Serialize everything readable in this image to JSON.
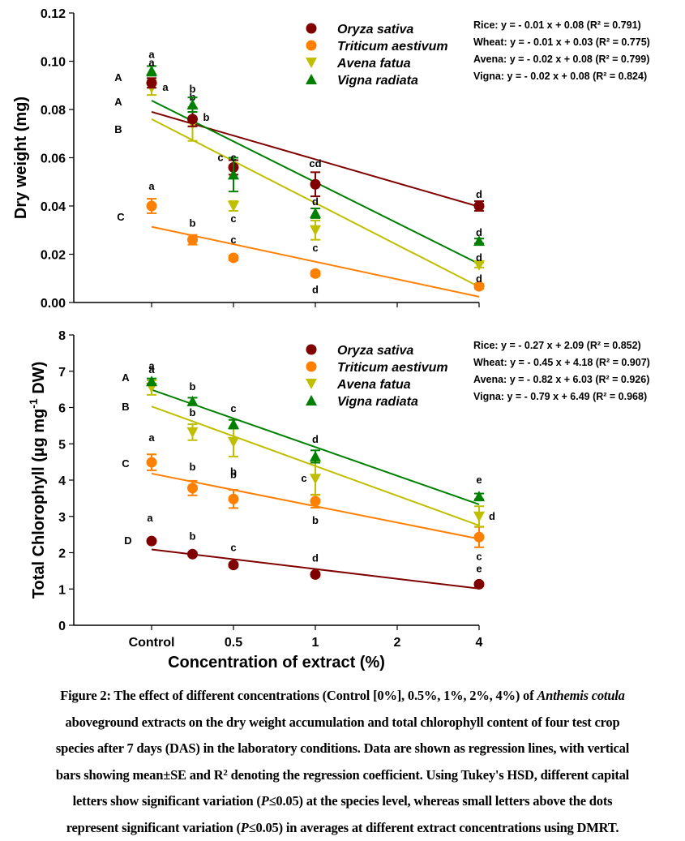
{
  "colors": {
    "rice": "#800000",
    "wheat": "#FF8000",
    "avena": "#BFBF00",
    "vigna": "#008000",
    "axis": "#000000"
  },
  "legend": [
    {
      "key": "rice",
      "label": "Oryza sativa",
      "marker": "circle"
    },
    {
      "key": "wheat",
      "label": "Triticum aestivum",
      "marker": "circle"
    },
    {
      "key": "avena",
      "label": "Avena fatua",
      "marker": "triangle-down"
    },
    {
      "key": "vigna",
      "label": "Vigna radiata",
      "marker": "triangle-up"
    }
  ],
  "chart_data": [
    {
      "type": "scatter",
      "title": "",
      "ylabel": "Dry weight (mg)",
      "xlabel": "",
      "ylim": [
        0,
        0.12
      ],
      "yticks": [
        "0.00",
        "0.02",
        "0.04",
        "0.06",
        "0.08",
        "0.10",
        "0.12"
      ],
      "ytick_values": [
        0,
        0.02,
        0.04,
        0.06,
        0.08,
        0.1,
        0.12
      ],
      "xlim": [
        -1,
        4
      ],
      "xtick_positions": [
        0,
        1,
        2,
        3,
        4
      ],
      "xtick_labels": [],
      "x": [
        0,
        0.5,
        1,
        2,
        4
      ],
      "legend_position": "top-right",
      "species_letters": [
        "A",
        "A",
        "B",
        "C"
      ],
      "series": [
        {
          "key": "rice",
          "name": "Oryza sativa",
          "values": [
            0.091,
            0.076,
            0.056,
            0.049,
            0.04
          ],
          "se": [
            0.002,
            0.003,
            0.003,
            0.005,
            0.002
          ],
          "letters": [
            "a",
            "b",
            "c",
            "cd",
            "d"
          ],
          "fit": {
            "slope": -0.01,
            "intercept": 0.08,
            "r2": 0.791
          },
          "equation": "Rice: y = - 0.01 x + 0.08 (R² = 0.791)"
        },
        {
          "key": "wheat",
          "name": "Triticum aestivum",
          "values": [
            0.04,
            0.026,
            0.0185,
            0.012,
            0.0067
          ],
          "se": [
            0.003,
            0.002,
            0.001,
            0.001,
            0.001
          ],
          "letters": [
            "a",
            "b",
            "c",
            "d",
            "d"
          ],
          "fit": {
            "slope": -0.01,
            "intercept": 0.03,
            "r2": 0.775
          },
          "equation": "Wheat: y = - 0.01 x + 0.03 (R² = 0.775)"
        },
        {
          "key": "avena",
          "name": "Avena fatua",
          "values": [
            0.089,
            0.074,
            0.04,
            0.03,
            0.0155
          ],
          "se": [
            0.003,
            0.007,
            0.002,
            0.004,
            0.001
          ],
          "letters": [
            "a",
            "b",
            "c",
            "c",
            "d"
          ],
          "fit": {
            "slope": -0.02,
            "intercept": 0.08,
            "r2": 0.799
          },
          "equation": "Avena: y = - 0.02 x + 0.08 (R² = 0.799)"
        },
        {
          "key": "vigna",
          "name": "Vigna radiata",
          "values": [
            0.096,
            0.082,
            0.053,
            0.037,
            0.0255
          ],
          "se": [
            0.002,
            0.003,
            0.007,
            0.002,
            0.001
          ],
          "letters": [
            "a",
            "b",
            "c",
            "d",
            "d"
          ],
          "fit": {
            "slope": -0.02,
            "intercept": 0.08,
            "r2": 0.824
          },
          "equation": "Vigna: y = - 0.02 x + 0.08 (R² = 0.824)"
        }
      ],
      "fit_lines": {
        "rice": [
          0.079,
          0.0397
        ],
        "wheat": [
          0.0314,
          0.0024
        ],
        "avena": [
          0.076,
          0.0065
        ],
        "vigna": [
          0.0837,
          0.016
        ]
      }
    },
    {
      "type": "scatter",
      "title": "",
      "ylabel": "Total Chlorophyll (µg mg-1 DW)",
      "ylabel_parts": {
        "pre": "Total Chlorophyll (µg mg",
        "sup": "-1",
        "post": " DW)"
      },
      "xlabel": "Concentration of extract (%)",
      "ylim": [
        0,
        8
      ],
      "yticks": [
        "0",
        "1",
        "2",
        "3",
        "4",
        "5",
        "6",
        "7",
        "8"
      ],
      "ytick_values": [
        0,
        1,
        2,
        3,
        4,
        5,
        6,
        7,
        8
      ],
      "xlim": [
        -1,
        4
      ],
      "xtick_positions": [
        0,
        1,
        2,
        3,
        4
      ],
      "xtick_labels": [
        "Control",
        "0.5",
        "1",
        "2",
        "4"
      ],
      "x": [
        0,
        0.5,
        1,
        2,
        4
      ],
      "legend_position": "top-right",
      "species_letters": [
        "A",
        "B",
        "C",
        "D"
      ],
      "series": [
        {
          "key": "rice",
          "name": "Oryza sativa",
          "values": [
            2.32,
            1.96,
            1.66,
            1.4,
            1.13
          ],
          "se": [
            0.05,
            0.05,
            0.05,
            0.05,
            0.05
          ],
          "letters": [
            "a",
            "b",
            "c",
            "d",
            "e"
          ],
          "fit": {
            "slope": -0.27,
            "intercept": 2.09,
            "r2": 0.852
          },
          "equation": "Rice: y = - 0.27 x + 2.09 (R² = 0.852)"
        },
        {
          "key": "wheat",
          "name": "Triticum aestivum",
          "values": [
            4.49,
            3.78,
            3.48,
            3.42,
            2.43
          ],
          "se": [
            0.22,
            0.2,
            0.25,
            0.18,
            0.28
          ],
          "letters": [
            "a",
            "b",
            "b",
            "b",
            "c"
          ],
          "fit": {
            "slope": -0.45,
            "intercept": 4.18,
            "r2": 0.907
          },
          "equation": "Wheat: y = - 0.45 x + 4.18 (R² = 0.907)"
        },
        {
          "key": "avena",
          "name": "Avena fatua",
          "values": [
            6.55,
            5.32,
            5.05,
            4.04,
            3.0
          ],
          "se": [
            0.2,
            0.22,
            0.4,
            0.45,
            0.28
          ],
          "letters": [
            "a",
            "b",
            "b",
            "c",
            "d"
          ],
          "fit": {
            "slope": -0.82,
            "intercept": 6.03,
            "r2": 0.926
          },
          "equation": "Avena: y = - 0.82 x + 6.03 (R² = 0.926)"
        },
        {
          "key": "vigna",
          "name": "Vigna radiata",
          "values": [
            6.72,
            6.17,
            5.54,
            4.65,
            3.55
          ],
          "se": [
            0.08,
            0.1,
            0.12,
            0.17,
            0.08
          ],
          "letters": [
            "a",
            "b",
            "c",
            "d",
            "e"
          ],
          "fit": {
            "slope": -0.79,
            "intercept": 6.49,
            "r2": 0.968
          },
          "equation": "Vigna: y = - 0.79 x + 6.49 (R² = 0.968)"
        }
      ],
      "fit_lines": {
        "rice": [
          2.09,
          1.01
        ],
        "wheat": [
          4.18,
          2.38
        ],
        "avena": [
          6.03,
          2.75
        ],
        "vigna": [
          6.49,
          3.33
        ]
      }
    }
  ],
  "caption": {
    "lines": [
      {
        "parts": [
          {
            "t": "Figure 2"
          },
          {
            "t": ": The effect of different concentrations (Control [0%], 0.5%, 1%, 2%, 4%) of "
          },
          {
            "t": "Anthemis cotula",
            "i": true
          }
        ]
      },
      {
        "parts": [
          {
            "t": "aboveground extracts on the dry weight accumulation and total chlorophyll content of four test crop"
          }
        ]
      },
      {
        "parts": [
          {
            "t": "species after 7 days (DAS) in the laboratory conditions. Data are shown as regression lines, with vertical"
          }
        ]
      },
      {
        "parts": [
          {
            "t": "bars showing mean±SE and R"
          },
          {
            "t": "2",
            "sup": true
          },
          {
            "t": " denoting the regression coefficient. Using Tukey's HSD, different capital"
          }
        ]
      },
      {
        "parts": [
          {
            "t": "letters show significant variation ("
          },
          {
            "t": "P",
            "i": true
          },
          {
            "t": "≤0.05) at the species level, whereas small letters above the dots"
          }
        ]
      },
      {
        "parts": [
          {
            "t": "represent significant variation ("
          },
          {
            "t": "P",
            "i": true
          },
          {
            "t": "≤0.05) in averages at different extract concentrations using DMRT."
          }
        ]
      }
    ]
  }
}
